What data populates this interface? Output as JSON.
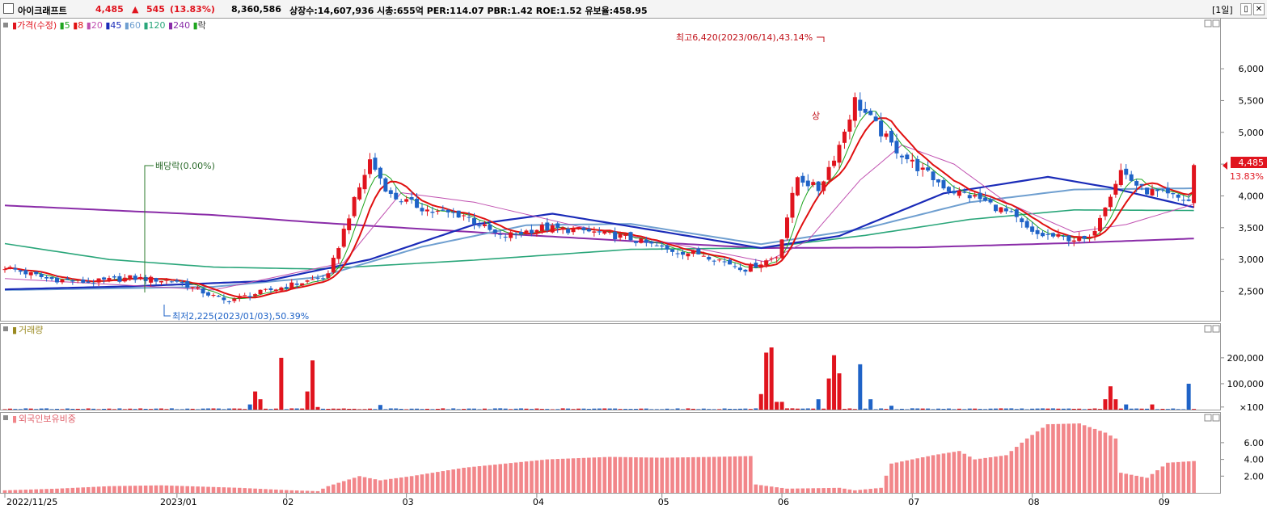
{
  "header": {
    "name": "아이크래프트",
    "price": "4,485",
    "arrow": "▲",
    "change": "545",
    "change_pct": "(13.83%)",
    "volume": "8,360,586",
    "info": "상장수:14,607,936 시총:655억 PER:114.07 PBR:1.42 ROE:1.52 유보율:458.95",
    "period_label": "1일",
    "split_icon": "window-split-icon",
    "close_icon": "close-icon"
  },
  "colors": {
    "up": "#e0141e",
    "down": "#1f63c7",
    "ma5": "#1ea51e",
    "ma8": "#e01010",
    "ma20": "#c050b0",
    "ma45": "#1a2bb8",
    "ma60": "#6f9fd0",
    "ma120": "#2aa67a",
    "ma240": "#8a2ca8",
    "foreign": "#f2868a"
  },
  "chart_data": [
    {
      "type": "candlestick",
      "title": "가격(수정)",
      "legend": [
        "가격(수정)",
        "5",
        "8",
        "20",
        "45",
        "60",
        "120",
        "240",
        "락"
      ],
      "ylim": [
        2100,
        6700
      ],
      "yticks": [
        "2,500",
        "3,000",
        "3,500",
        "4,000",
        "4,500",
        "5,000",
        "5,500",
        "6,000"
      ],
      "price_badge": "4,485",
      "price_badge_pct": "13.83%",
      "annotations": {
        "high": "최고6,420(2023/06/14),43.14%",
        "low": "최저2,225(2023/01/03),50.39%",
        "dividend": "배당락(0.00%)",
        "event": "상"
      },
      "anchors": [
        [
          0,
          2880
        ],
        [
          8,
          2700
        ],
        [
          16,
          2640
        ],
        [
          24,
          2710
        ],
        [
          33,
          2660
        ],
        [
          42,
          2350
        ],
        [
          46,
          2420
        ],
        [
          55,
          2600
        ],
        [
          62,
          2740
        ],
        [
          66,
          3700
        ],
        [
          70,
          4560
        ],
        [
          74,
          4000
        ],
        [
          82,
          3750
        ],
        [
          88,
          3700
        ],
        [
          95,
          3350
        ],
        [
          103,
          3500
        ],
        [
          111,
          3450
        ],
        [
          119,
          3350
        ],
        [
          127,
          3150
        ],
        [
          134,
          3080
        ],
        [
          142,
          2850
        ],
        [
          148,
          3050
        ],
        [
          152,
          4300
        ],
        [
          156,
          4100
        ],
        [
          160,
          4800
        ],
        [
          163,
          5500
        ],
        [
          166,
          5200
        ],
        [
          170,
          4800
        ],
        [
          175,
          4450
        ],
        [
          181,
          4100
        ],
        [
          187,
          3950
        ],
        [
          193,
          3700
        ],
        [
          197,
          3400
        ],
        [
          202,
          3350
        ],
        [
          208,
          3300
        ],
        [
          210,
          3700
        ],
        [
          214,
          4400
        ],
        [
          218,
          4100
        ],
        [
          223,
          4000
        ],
        [
          227,
          3920
        ],
        [
          228,
          4485
        ]
      ],
      "ma_anchors": {
        "ma20": [
          [
            0,
            2700
          ],
          [
            40,
            2520
          ],
          [
            65,
            2950
          ],
          [
            76,
            4050
          ],
          [
            90,
            3900
          ],
          [
            110,
            3520
          ],
          [
            130,
            3220
          ],
          [
            146,
            2960
          ],
          [
            154,
            3300
          ],
          [
            164,
            4250
          ],
          [
            172,
            4800
          ],
          [
            182,
            4500
          ],
          [
            192,
            3900
          ],
          [
            205,
            3430
          ],
          [
            215,
            3550
          ],
          [
            228,
            3870
          ]
        ],
        "ma45": [
          [
            0,
            2530
          ],
          [
            25,
            2580
          ],
          [
            50,
            2660
          ],
          [
            70,
            3000
          ],
          [
            90,
            3550
          ],
          [
            105,
            3720
          ],
          [
            120,
            3520
          ],
          [
            145,
            3180
          ],
          [
            160,
            3370
          ],
          [
            180,
            4040
          ],
          [
            200,
            4300
          ],
          [
            212,
            4130
          ],
          [
            228,
            3820
          ]
        ],
        "ma60": [
          [
            0,
            2520
          ],
          [
            40,
            2570
          ],
          [
            60,
            2720
          ],
          [
            80,
            3200
          ],
          [
            100,
            3540
          ],
          [
            120,
            3560
          ],
          [
            145,
            3240
          ],
          [
            165,
            3490
          ],
          [
            185,
            3900
          ],
          [
            205,
            4100
          ],
          [
            228,
            4120
          ]
        ],
        "ma120": [
          [
            0,
            3250
          ],
          [
            20,
            3000
          ],
          [
            40,
            2880
          ],
          [
            60,
            2850
          ],
          [
            90,
            2990
          ],
          [
            120,
            3160
          ],
          [
            145,
            3180
          ],
          [
            165,
            3380
          ],
          [
            185,
            3630
          ],
          [
            205,
            3780
          ],
          [
            228,
            3770
          ]
        ],
        "ma240": [
          [
            0,
            3850
          ],
          [
            40,
            3700
          ],
          [
            60,
            3580
          ],
          [
            90,
            3430
          ],
          [
            120,
            3290
          ],
          [
            145,
            3180
          ],
          [
            175,
            3190
          ],
          [
            205,
            3260
          ],
          [
            228,
            3330
          ]
        ]
      }
    },
    {
      "type": "bar",
      "title": "거래량",
      "ylim": [
        0,
        290000
      ],
      "yticks": [
        "200,000",
        "100,000",
        "×100"
      ],
      "spikes": [
        [
          47,
          20000
        ],
        [
          48,
          70000
        ],
        [
          49,
          40000
        ],
        [
          53,
          200000
        ],
        [
          58,
          70000
        ],
        [
          59,
          190000
        ],
        [
          60,
          10000
        ],
        [
          72,
          18000
        ],
        [
          145,
          60000
        ],
        [
          146,
          220000
        ],
        [
          147,
          240000
        ],
        [
          148,
          30000
        ],
        [
          149,
          30000
        ],
        [
          156,
          40000
        ],
        [
          158,
          120000
        ],
        [
          159,
          210000
        ],
        [
          160,
          140000
        ],
        [
          164,
          175000
        ],
        [
          166,
          40000
        ],
        [
          170,
          15000
        ],
        [
          211,
          40000
        ],
        [
          212,
          90000
        ],
        [
          213,
          40000
        ],
        [
          215,
          20000
        ],
        [
          220,
          20000
        ],
        [
          227,
          100000
        ]
      ]
    },
    {
      "type": "bar",
      "title": "외국인보유비중",
      "ylim": [
        0,
        8.5
      ],
      "yticks": [
        "6.00",
        "4.00",
        "2.00"
      ],
      "anchors": [
        [
          0,
          0.3
        ],
        [
          10,
          0.5
        ],
        [
          20,
          0.8
        ],
        [
          30,
          0.9
        ],
        [
          40,
          0.7
        ],
        [
          45,
          0.6
        ],
        [
          55,
          0.3
        ],
        [
          60,
          0.2
        ],
        [
          62,
          0.8
        ],
        [
          68,
          2.0
        ],
        [
          72,
          1.5
        ],
        [
          78,
          2.0
        ],
        [
          88,
          3.0
        ],
        [
          96,
          3.5
        ],
        [
          104,
          4.0
        ],
        [
          116,
          4.3
        ],
        [
          126,
          4.2
        ],
        [
          136,
          4.3
        ],
        [
          143,
          4.4
        ],
        [
          144,
          1.0
        ],
        [
          150,
          0.5
        ],
        [
          160,
          0.6
        ],
        [
          163,
          0.3
        ],
        [
          168,
          0.6
        ],
        [
          170,
          3.5
        ],
        [
          178,
          4.5
        ],
        [
          183,
          5.0
        ],
        [
          186,
          4.0
        ],
        [
          192,
          4.5
        ],
        [
          196,
          6.5
        ],
        [
          200,
          8.2
        ],
        [
          206,
          8.3
        ],
        [
          211,
          7.2
        ],
        [
          213,
          6.5
        ],
        [
          214,
          2.4
        ],
        [
          219,
          1.8
        ],
        [
          223,
          3.6
        ],
        [
          228,
          3.8
        ]
      ]
    }
  ],
  "x_axis": {
    "labels": [
      {
        "i": 0,
        "t": "2022/11/25"
      },
      {
        "i": 33,
        "t": "2023/01"
      },
      {
        "i": 54,
        "t": "02"
      },
      {
        "i": 77,
        "t": "03"
      },
      {
        "i": 102,
        "t": "04"
      },
      {
        "i": 126,
        "t": "05"
      },
      {
        "i": 149,
        "t": "06"
      },
      {
        "i": 174,
        "t": "07"
      },
      {
        "i": 197,
        "t": "08"
      },
      {
        "i": 222,
        "t": "09"
      }
    ]
  }
}
